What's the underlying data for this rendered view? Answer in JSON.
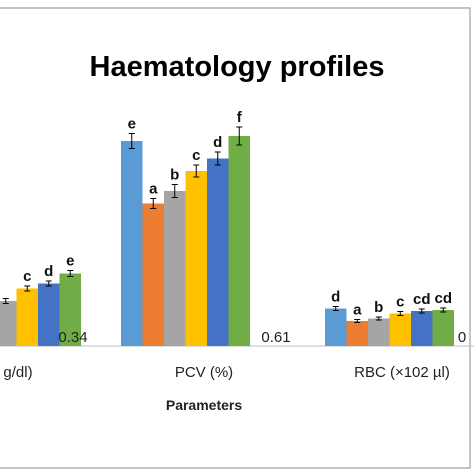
{
  "chart_data": {
    "type": "bar",
    "title": "Haematology  profiles",
    "xlabel": "Parameters",
    "ylabel": "",
    "categories": [
      "g/dl)",
      "PCV (%)",
      "RBC (×102 µl)"
    ],
    "ylim": [
      0,
      50
    ],
    "grid": false,
    "series": [
      {
        "color": "#5b9bd5",
        "values": [
          8.0,
          41.0,
          7.5
        ],
        "errors": [
          0.5,
          1.5,
          0.4
        ],
        "sig": [
          "",
          "e",
          "d"
        ]
      },
      {
        "color": "#ed7d31",
        "values": [
          8.5,
          28.5,
          5.0
        ],
        "errors": [
          0.5,
          1.0,
          0.3
        ],
        "sig": [
          "",
          "a",
          "a"
        ]
      },
      {
        "color": "#a5a5a5",
        "values": [
          9.0,
          31.0,
          5.5
        ],
        "errors": [
          0.5,
          1.3,
          0.3
        ],
        "sig": [
          "",
          "b",
          "b"
        ]
      },
      {
        "color": "#ffc000",
        "values": [
          11.5,
          35.0,
          6.5
        ],
        "errors": [
          0.5,
          1.2,
          0.4
        ],
        "sig": [
          "c",
          "c",
          "c"
        ]
      },
      {
        "color": "#4472c4",
        "values": [
          12.5,
          37.5,
          7.0
        ],
        "errors": [
          0.5,
          1.3,
          0.4
        ],
        "sig": [
          "d",
          "d",
          "cd"
        ]
      },
      {
        "color": "#70ad47",
        "values": [
          14.5,
          42.0,
          7.2
        ],
        "errors": [
          0.6,
          1.8,
          0.4
        ],
        "sig": [
          "e",
          "f",
          "cd"
        ]
      }
    ],
    "sd_labels": [
      "0.34",
      "0.61",
      "0"
    ]
  }
}
